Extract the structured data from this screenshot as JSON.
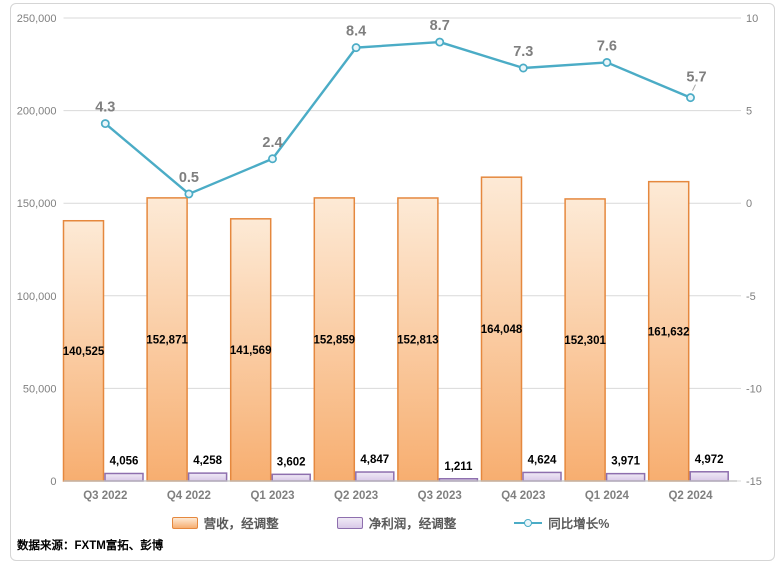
{
  "source_note": "数据来源：FXTM富拓、彭博",
  "colors": {
    "revenue_fill_top": "#fdead6",
    "revenue_fill_bottom": "#f7ae70",
    "revenue_border": "#e5883e",
    "profit_fill_top": "#f0eaf6",
    "profit_fill_bottom": "#d9c9e8",
    "profit_border": "#8e6fae",
    "growth_line": "#4bacc6",
    "growth_marker_fill": "#eaf6fa",
    "gridline": "#d9d9d9",
    "axis_line": "#bfbfbf",
    "axis_text": "#808080",
    "bar_label_text": "#000000",
    "line_label_text": "#7f7f7f",
    "legend_text": "#595959"
  },
  "chart_data": {
    "type": "bar",
    "subtype": "clustered bars with secondary-axis line (combo)",
    "title": "",
    "categories": [
      "Q3 2022",
      "Q4 2022",
      "Q1 2023",
      "Q2 2023",
      "Q3 2023",
      "Q4 2023",
      "Q1 2024",
      "Q2 2024"
    ],
    "series": [
      {
        "name": "营收，经调整",
        "type": "bar",
        "axis": "left",
        "values": [
          140525,
          152871,
          141569,
          152859,
          152813,
          164048,
          152301,
          161632
        ],
        "labels": [
          "140,525",
          "152,871",
          "141,569",
          "152,859",
          "152,813",
          "164,048",
          "152,301",
          "161,632"
        ]
      },
      {
        "name": "净利润，经调整",
        "type": "bar",
        "axis": "left",
        "values": [
          4056,
          4258,
          3602,
          4847,
          1211,
          4624,
          3971,
          4972
        ],
        "labels": [
          "4,056",
          "4,258",
          "3,602",
          "4,847",
          "1,211",
          "4,624",
          "3,971",
          "4,972"
        ]
      },
      {
        "name": "同比增长%",
        "type": "line",
        "axis": "right",
        "values": [
          4.3,
          0.5,
          2.4,
          8.4,
          8.7,
          7.3,
          7.6,
          5.7
        ],
        "labels": [
          "4.3",
          "0.5",
          "2.4",
          "8.4",
          "8.7",
          "7.3",
          "7.6",
          "5.7"
        ]
      }
    ],
    "left_axis": {
      "min": 0,
      "max": 250000,
      "tick_labels": [
        "250,000",
        "200,000",
        "150,000",
        "100,000",
        "50,000",
        "0"
      ]
    },
    "right_axis": {
      "min": -15,
      "max": 10,
      "tick_labels": [
        "10",
        "5",
        "0",
        "-5",
        "-10",
        "-15"
      ]
    },
    "grid": true,
    "legend_position": "bottom"
  }
}
